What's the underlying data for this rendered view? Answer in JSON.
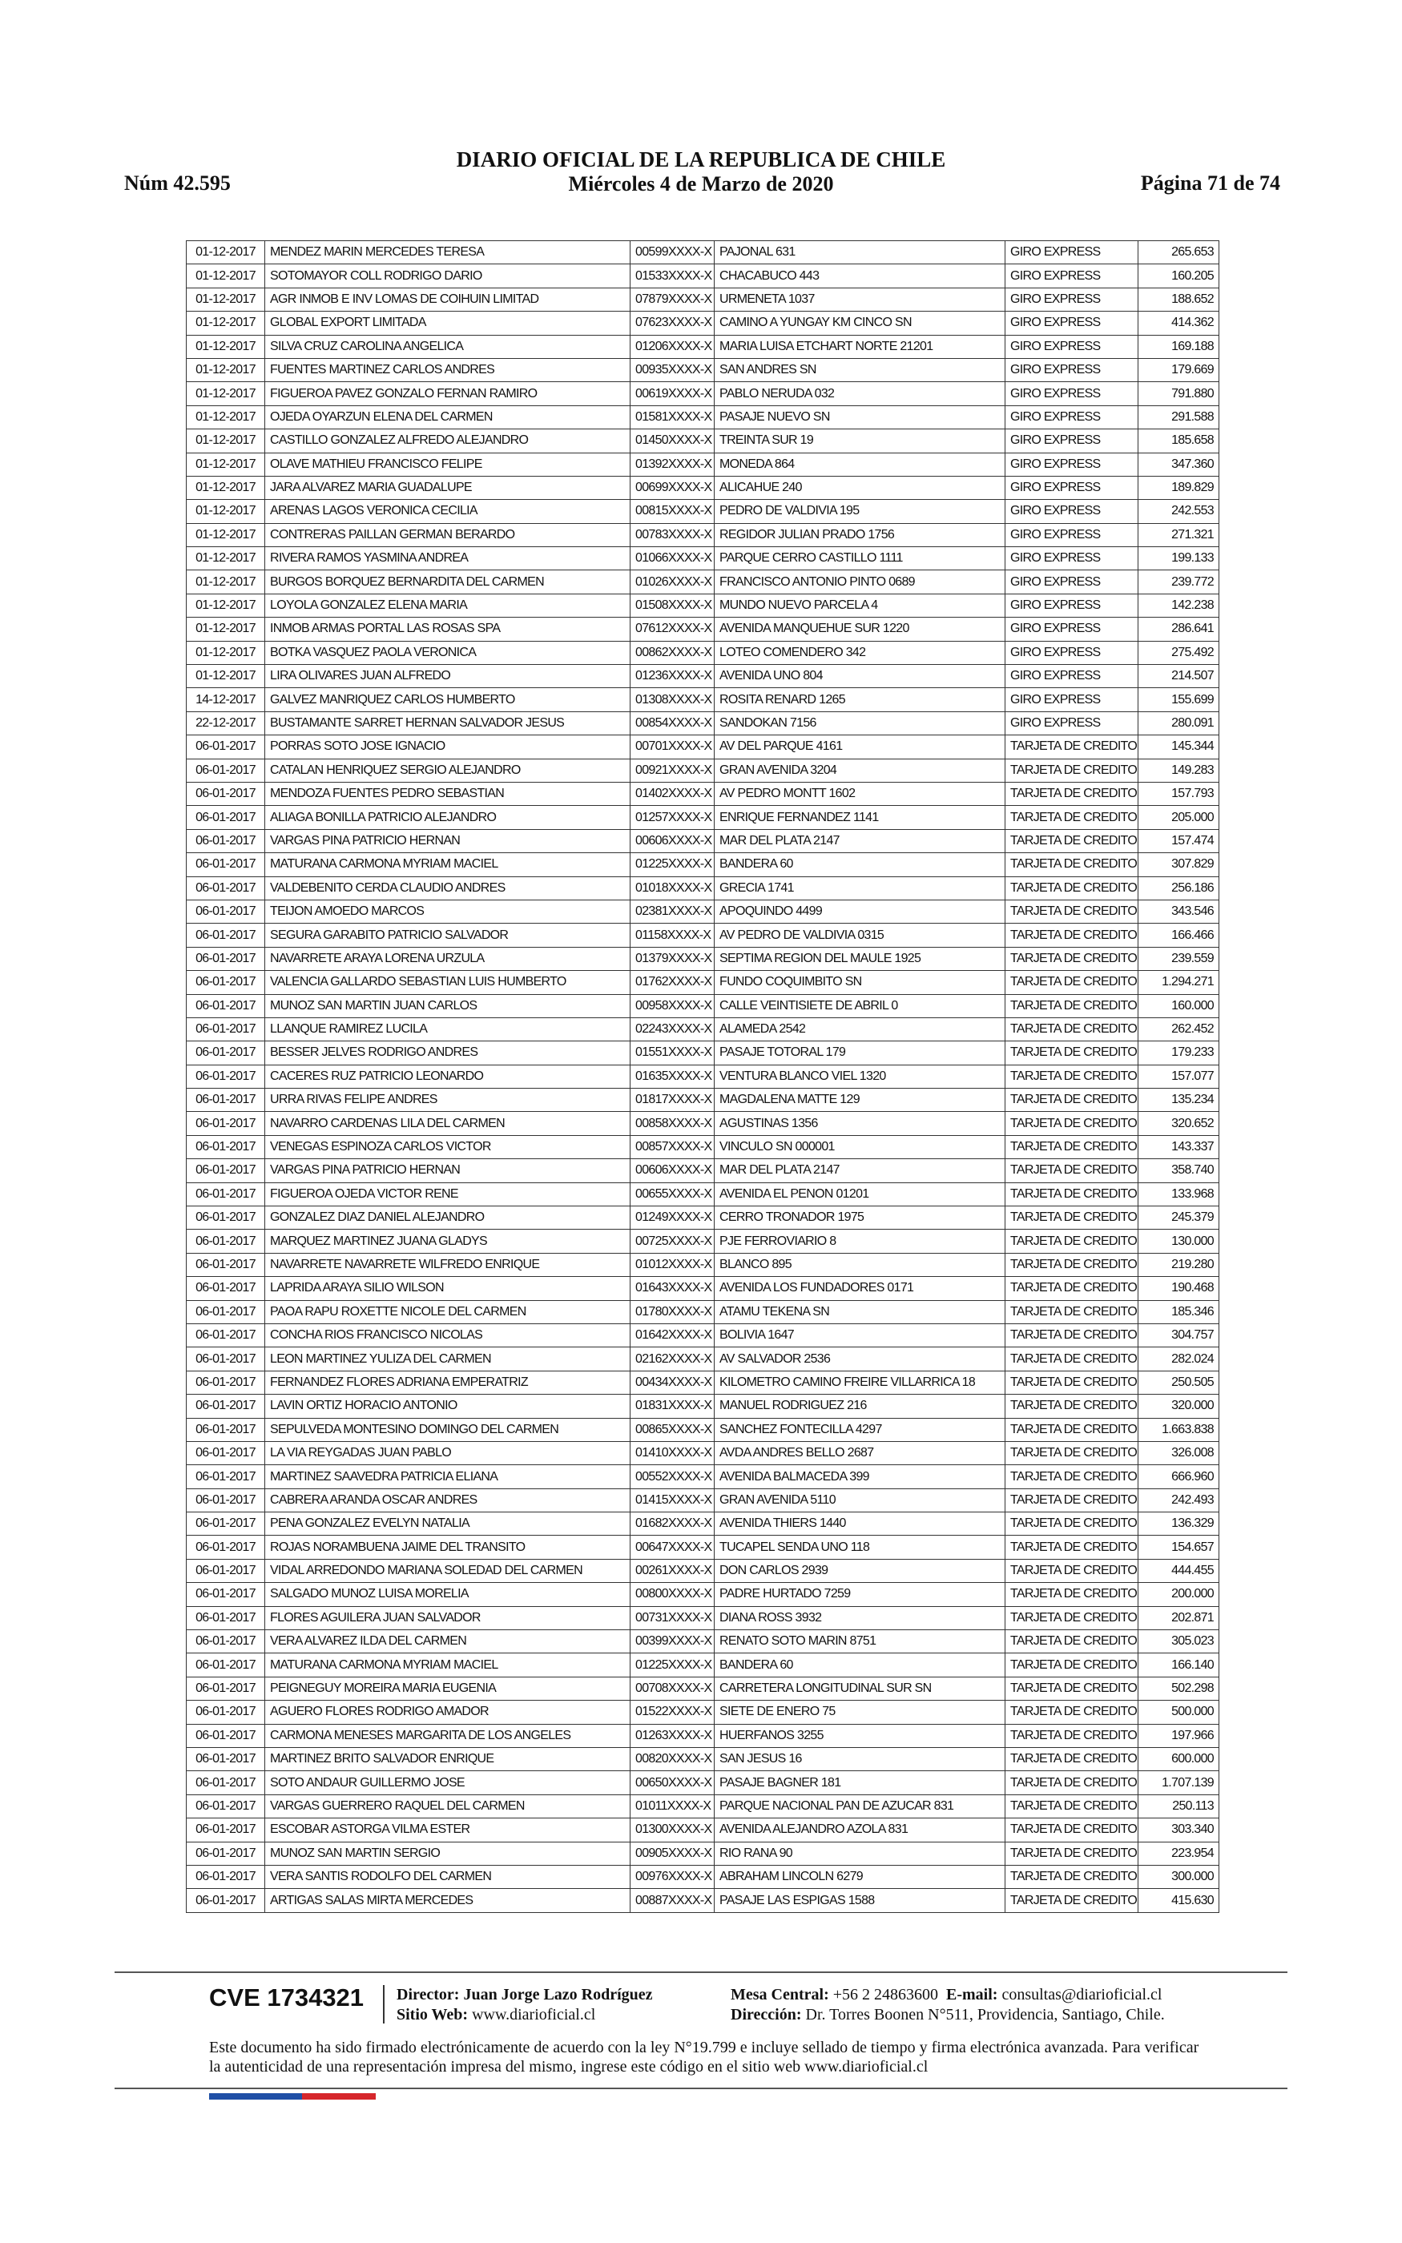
{
  "header": {
    "number": "Núm 42.595",
    "title": "DIARIO OFICIAL DE LA REPUBLICA DE CHILE",
    "date": "Miércoles 4 de Marzo de 2020",
    "page": "Página 71 de 74"
  },
  "table": {
    "rows": [
      [
        "01-12-2017",
        "MENDEZ MARIN MERCEDES TERESA",
        "00599XXXX-X",
        "PAJONAL 631",
        "GIRO EXPRESS",
        "265.653"
      ],
      [
        "01-12-2017",
        "SOTOMAYOR COLL RODRIGO DARIO",
        "01533XXXX-X",
        "CHACABUCO 443",
        "GIRO EXPRESS",
        "160.205"
      ],
      [
        "01-12-2017",
        "AGR INMOB E INV LOMAS DE COIHUIN LIMITAD",
        "07879XXXX-X",
        "URMENETA 1037",
        "GIRO EXPRESS",
        "188.652"
      ],
      [
        "01-12-2017",
        "GLOBAL EXPORT LIMITADA",
        "07623XXXX-X",
        "CAMINO A YUNGAY KM CINCO SN",
        "GIRO EXPRESS",
        "414.362"
      ],
      [
        "01-12-2017",
        "SILVA CRUZ CAROLINA ANGELICA",
        "01206XXXX-X",
        "MARIA LUISA ETCHART NORTE 21201",
        "GIRO EXPRESS",
        "169.188"
      ],
      [
        "01-12-2017",
        "FUENTES MARTINEZ CARLOS ANDRES",
        "00935XXXX-X",
        "SAN ANDRES SN",
        "GIRO EXPRESS",
        "179.669"
      ],
      [
        "01-12-2017",
        "FIGUEROA PAVEZ GONZALO FERNAN RAMIRO",
        "00619XXXX-X",
        "PABLO NERUDA 032",
        "GIRO EXPRESS",
        "791.880"
      ],
      [
        "01-12-2017",
        "OJEDA OYARZUN ELENA DEL CARMEN",
        "01581XXXX-X",
        "PASAJE NUEVO SN",
        "GIRO EXPRESS",
        "291.588"
      ],
      [
        "01-12-2017",
        "CASTILLO GONZALEZ ALFREDO ALEJANDRO",
        "01450XXXX-X",
        "TREINTA SUR 19",
        "GIRO EXPRESS",
        "185.658"
      ],
      [
        "01-12-2017",
        "OLAVE MATHIEU FRANCISCO FELIPE",
        "01392XXXX-X",
        "MONEDA 864",
        "GIRO EXPRESS",
        "347.360"
      ],
      [
        "01-12-2017",
        "JARA ALVAREZ MARIA GUADALUPE",
        "00699XXXX-X",
        "ALICAHUE 240",
        "GIRO EXPRESS",
        "189.829"
      ],
      [
        "01-12-2017",
        "ARENAS LAGOS VERONICA CECILIA",
        "00815XXXX-X",
        "PEDRO DE VALDIVIA 195",
        "GIRO EXPRESS",
        "242.553"
      ],
      [
        "01-12-2017",
        "CONTRERAS PAILLAN GERMAN BERARDO",
        "00783XXXX-X",
        "REGIDOR JULIAN PRADO 1756",
        "GIRO EXPRESS",
        "271.321"
      ],
      [
        "01-12-2017",
        "RIVERA RAMOS YASMINA ANDREA",
        "01066XXXX-X",
        "PARQUE CERRO CASTILLO 1111",
        "GIRO EXPRESS",
        "199.133"
      ],
      [
        "01-12-2017",
        "BURGOS BORQUEZ BERNARDITA DEL CARMEN",
        "01026XXXX-X",
        "FRANCISCO ANTONIO PINTO 0689",
        "GIRO EXPRESS",
        "239.772"
      ],
      [
        "01-12-2017",
        "LOYOLA GONZALEZ ELENA MARIA",
        "01508XXXX-X",
        "MUNDO NUEVO PARCELA 4",
        "GIRO EXPRESS",
        "142.238"
      ],
      [
        "01-12-2017",
        "INMOB ARMAS PORTAL LAS ROSAS SPA",
        "07612XXXX-X",
        "AVENIDA MANQUEHUE SUR 1220",
        "GIRO EXPRESS",
        "286.641"
      ],
      [
        "01-12-2017",
        "BOTKA VASQUEZ PAOLA VERONICA",
        "00862XXXX-X",
        "LOTEO COMENDERO 342",
        "GIRO EXPRESS",
        "275.492"
      ],
      [
        "01-12-2017",
        "LIRA OLIVARES JUAN ALFREDO",
        "01236XXXX-X",
        "AVENIDA UNO 804",
        "GIRO EXPRESS",
        "214.507"
      ],
      [
        "14-12-2017",
        "GALVEZ MANRIQUEZ CARLOS HUMBERTO",
        "01308XXXX-X",
        "ROSITA RENARD 1265",
        "GIRO EXPRESS",
        "155.699"
      ],
      [
        "22-12-2017",
        "BUSTAMANTE SARRET HERNAN SALVADOR JESUS",
        "00854XXXX-X",
        "SANDOKAN 7156",
        "GIRO EXPRESS",
        "280.091"
      ],
      [
        "06-01-2017",
        "PORRAS SOTO JOSE IGNACIO",
        "00701XXXX-X",
        "AV DEL PARQUE 4161",
        "TARJETA DE CREDITO",
        "145.344"
      ],
      [
        "06-01-2017",
        "CATALAN HENRIQUEZ SERGIO ALEJANDRO",
        "00921XXXX-X",
        "GRAN AVENIDA 3204",
        "TARJETA DE CREDITO",
        "149.283"
      ],
      [
        "06-01-2017",
        "MENDOZA FUENTES PEDRO SEBASTIAN",
        "01402XXXX-X",
        "AV PEDRO MONTT 1602",
        "TARJETA DE CREDITO",
        "157.793"
      ],
      [
        "06-01-2017",
        "ALIAGA BONILLA PATRICIO ALEJANDRO",
        "01257XXXX-X",
        "ENRIQUE FERNANDEZ 1141",
        "TARJETA DE CREDITO",
        "205.000"
      ],
      [
        "06-01-2017",
        "VARGAS PINA PATRICIO HERNAN",
        "00606XXXX-X",
        "MAR DEL PLATA 2147",
        "TARJETA DE CREDITO",
        "157.474"
      ],
      [
        "06-01-2017",
        "MATURANA CARMONA MYRIAM MACIEL",
        "01225XXXX-X",
        "BANDERA 60",
        "TARJETA DE CREDITO",
        "307.829"
      ],
      [
        "06-01-2017",
        "VALDEBENITO CERDA CLAUDIO ANDRES",
        "01018XXXX-X",
        "GRECIA 1741",
        "TARJETA DE CREDITO",
        "256.186"
      ],
      [
        "06-01-2017",
        "TEIJON AMOEDO MARCOS",
        "02381XXXX-X",
        "APOQUINDO 4499",
        "TARJETA DE CREDITO",
        "343.546"
      ],
      [
        "06-01-2017",
        "SEGURA GARABITO PATRICIO SALVADOR",
        "01158XXXX-X",
        "AV PEDRO DE VALDIVIA 0315",
        "TARJETA DE CREDITO",
        "166.466"
      ],
      [
        "06-01-2017",
        "NAVARRETE ARAYA LORENA URZULA",
        "01379XXXX-X",
        "SEPTIMA REGION DEL MAULE 1925",
        "TARJETA DE CREDITO",
        "239.559"
      ],
      [
        "06-01-2017",
        "VALENCIA GALLARDO SEBASTIAN LUIS HUMBERTO",
        "01762XXXX-X",
        "FUNDO COQUIMBITO SN",
        "TARJETA DE CREDITO",
        "1.294.271"
      ],
      [
        "06-01-2017",
        "MUNOZ SAN MARTIN JUAN CARLOS",
        "00958XXXX-X",
        "CALLE VEINTISIETE DE ABRIL 0",
        "TARJETA DE CREDITO",
        "160.000"
      ],
      [
        "06-01-2017",
        "LLANQUE RAMIREZ LUCILA",
        "02243XXXX-X",
        "ALAMEDA 2542",
        "TARJETA DE CREDITO",
        "262.452"
      ],
      [
        "06-01-2017",
        "BESSER JELVES RODRIGO ANDRES",
        "01551XXXX-X",
        "PASAJE TOTORAL 179",
        "TARJETA DE CREDITO",
        "179.233"
      ],
      [
        "06-01-2017",
        "CACERES RUZ PATRICIO LEONARDO",
        "01635XXXX-X",
        "VENTURA BLANCO VIEL 1320",
        "TARJETA DE CREDITO",
        "157.077"
      ],
      [
        "06-01-2017",
        "URRA RIVAS FELIPE ANDRES",
        "01817XXXX-X",
        "MAGDALENA MATTE 129",
        "TARJETA DE CREDITO",
        "135.234"
      ],
      [
        "06-01-2017",
        "NAVARRO CARDENAS LILA DEL CARMEN",
        "00858XXXX-X",
        "AGUSTINAS 1356",
        "TARJETA DE CREDITO",
        "320.652"
      ],
      [
        "06-01-2017",
        "VENEGAS ESPINOZA CARLOS VICTOR",
        "00857XXXX-X",
        "VINCULO SN 000001",
        "TARJETA DE CREDITO",
        "143.337"
      ],
      [
        "06-01-2017",
        "VARGAS PINA PATRICIO HERNAN",
        "00606XXXX-X",
        "MAR DEL PLATA 2147",
        "TARJETA DE CREDITO",
        "358.740"
      ],
      [
        "06-01-2017",
        "FIGUEROA OJEDA VICTOR RENE",
        "00655XXXX-X",
        "AVENIDA EL PENON 01201",
        "TARJETA DE CREDITO",
        "133.968"
      ],
      [
        "06-01-2017",
        "GONZALEZ DIAZ DANIEL ALEJANDRO",
        "01249XXXX-X",
        "CERRO TRONADOR 1975",
        "TARJETA DE CREDITO",
        "245.379"
      ],
      [
        "06-01-2017",
        "MARQUEZ MARTINEZ JUANA GLADYS",
        "00725XXXX-X",
        "PJE FERROVIARIO 8",
        "TARJETA DE CREDITO",
        "130.000"
      ],
      [
        "06-01-2017",
        "NAVARRETE NAVARRETE WILFREDO ENRIQUE",
        "01012XXXX-X",
        "BLANCO 895",
        "TARJETA DE CREDITO",
        "219.280"
      ],
      [
        "06-01-2017",
        "LAPRIDA ARAYA SILIO WILSON",
        "01643XXXX-X",
        "AVENIDA LOS FUNDADORES 0171",
        "TARJETA DE CREDITO",
        "190.468"
      ],
      [
        "06-01-2017",
        "PAOA RAPU ROXETTE NICOLE DEL CARMEN",
        "01780XXXX-X",
        "ATAMU TEKENA SN",
        "TARJETA DE CREDITO",
        "185.346"
      ],
      [
        "06-01-2017",
        "CONCHA RIOS FRANCISCO NICOLAS",
        "01642XXXX-X",
        "BOLIVIA 1647",
        "TARJETA DE CREDITO",
        "304.757"
      ],
      [
        "06-01-2017",
        "LEON MARTINEZ YULIZA DEL CARMEN",
        "02162XXXX-X",
        "AV SALVADOR 2536",
        "TARJETA DE CREDITO",
        "282.024"
      ],
      [
        "06-01-2017",
        "FERNANDEZ FLORES ADRIANA EMPERATRIZ",
        "00434XXXX-X",
        "KILOMETRO CAMINO FREIRE VILLARRICA 18",
        "TARJETA DE CREDITO",
        "250.505"
      ],
      [
        "06-01-2017",
        "LAVIN ORTIZ HORACIO ANTONIO",
        "01831XXXX-X",
        "MANUEL RODRIGUEZ 216",
        "TARJETA DE CREDITO",
        "320.000"
      ],
      [
        "06-01-2017",
        "SEPULVEDA MONTESINO DOMINGO DEL CARMEN",
        "00865XXXX-X",
        "SANCHEZ FONTECILLA 4297",
        "TARJETA DE CREDITO",
        "1.663.838"
      ],
      [
        "06-01-2017",
        "LA VIA REYGADAS JUAN PABLO",
        "01410XXXX-X",
        "AVDA ANDRES BELLO 2687",
        "TARJETA DE CREDITO",
        "326.008"
      ],
      [
        "06-01-2017",
        "MARTINEZ SAAVEDRA PATRICIA ELIANA",
        "00552XXXX-X",
        "AVENIDA BALMACEDA 399",
        "TARJETA DE CREDITO",
        "666.960"
      ],
      [
        "06-01-2017",
        "CABRERA ARANDA OSCAR ANDRES",
        "01415XXXX-X",
        "GRAN AVENIDA 5110",
        "TARJETA DE CREDITO",
        "242.493"
      ],
      [
        "06-01-2017",
        "PENA GONZALEZ EVELYN NATALIA",
        "01682XXXX-X",
        "AVENIDA THIERS 1440",
        "TARJETA DE CREDITO",
        "136.329"
      ],
      [
        "06-01-2017",
        "ROJAS NORAMBUENA JAIME DEL TRANSITO",
        "00647XXXX-X",
        "TUCAPEL SENDA UNO 118",
        "TARJETA DE CREDITO",
        "154.657"
      ],
      [
        "06-01-2017",
        "VIDAL ARREDONDO MARIANA SOLEDAD DEL CARMEN",
        "00261XXXX-X",
        "DON CARLOS 2939",
        "TARJETA DE CREDITO",
        "444.455"
      ],
      [
        "06-01-2017",
        "SALGADO MUNOZ LUISA MORELIA",
        "00800XXXX-X",
        "PADRE HURTADO 7259",
        "TARJETA DE CREDITO",
        "200.000"
      ],
      [
        "06-01-2017",
        "FLORES AGUILERA JUAN SALVADOR",
        "00731XXXX-X",
        "DIANA ROSS 3932",
        "TARJETA DE CREDITO",
        "202.871"
      ],
      [
        "06-01-2017",
        "VERA ALVAREZ ILDA DEL CARMEN",
        "00399XXXX-X",
        "RENATO SOTO MARIN 8751",
        "TARJETA DE CREDITO",
        "305.023"
      ],
      [
        "06-01-2017",
        "MATURANA CARMONA MYRIAM MACIEL",
        "01225XXXX-X",
        "BANDERA 60",
        "TARJETA DE CREDITO",
        "166.140"
      ],
      [
        "06-01-2017",
        "PEIGNEGUY MOREIRA MARIA EUGENIA",
        "00708XXXX-X",
        "CARRETERA LONGITUDINAL SUR SN",
        "TARJETA DE CREDITO",
        "502.298"
      ],
      [
        "06-01-2017",
        "AGUERO FLORES RODRIGO AMADOR",
        "01522XXXX-X",
        "SIETE DE ENERO 75",
        "TARJETA DE CREDITO",
        "500.000"
      ],
      [
        "06-01-2017",
        "CARMONA MENESES MARGARITA DE LOS ANGELES",
        "01263XXXX-X",
        "HUERFANOS 3255",
        "TARJETA DE CREDITO",
        "197.966"
      ],
      [
        "06-01-2017",
        "MARTINEZ BRITO SALVADOR ENRIQUE",
        "00820XXXX-X",
        "SAN JESUS 16",
        "TARJETA DE CREDITO",
        "600.000"
      ],
      [
        "06-01-2017",
        "SOTO ANDAUR GUILLERMO JOSE",
        "00650XXXX-X",
        "PASAJE BAGNER 181",
        "TARJETA DE CREDITO",
        "1.707.139"
      ],
      [
        "06-01-2017",
        "VARGAS GUERRERO RAQUEL DEL CARMEN",
        "01011XXXX-X",
        "PARQUE NACIONAL PAN DE AZUCAR 831",
        "TARJETA DE CREDITO",
        "250.113"
      ],
      [
        "06-01-2017",
        "ESCOBAR ASTORGA VILMA ESTER",
        "01300XXXX-X",
        "AVENIDA ALEJANDRO AZOLA 831",
        "TARJETA DE CREDITO",
        "303.340"
      ],
      [
        "06-01-2017",
        "MUNOZ SAN MARTIN SERGIO",
        "00905XXXX-X",
        "RIO RANA 90",
        "TARJETA DE CREDITO",
        "223.954"
      ],
      [
        "06-01-2017",
        "VERA SANTIS RODOLFO DEL CARMEN",
        "00976XXXX-X",
        "ABRAHAM LINCOLN 6279",
        "TARJETA DE CREDITO",
        "300.000"
      ],
      [
        "06-01-2017",
        "ARTIGAS SALAS MIRTA MERCEDES",
        "00887XXXX-X",
        "PASAJE LAS ESPIGAS 1588",
        "TARJETA DE CREDITO",
        "415.630"
      ]
    ]
  },
  "footer": {
    "cve": "CVE 1734321",
    "director_label": "Director:",
    "director": "Juan Jorge Lazo Rodríguez",
    "web_label": "Sitio Web:",
    "web": "www.diarioficial.cl",
    "mesa_label": "Mesa Central:",
    "mesa": "+56 2 24863600",
    "email_label": "E-mail:",
    "email": "consultas@diarioficial.cl",
    "address_label": "Dirección:",
    "address": "Dr. Torres Boonen N°511, Providencia, Santiago, Chile.",
    "notice": "Este documento ha sido firmado electrónicamente de acuerdo con la ley N°19.799 e incluye sellado de tiempo y firma electrónica avanzada. Para verificar la autenticidad de una representación impresa del mismo, ingrese este código en el sitio web www.diarioficial.cl"
  }
}
